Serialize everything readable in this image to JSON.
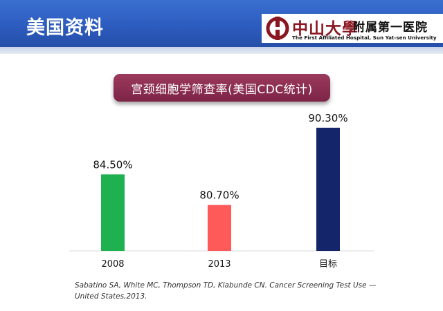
{
  "header": {
    "title": "美国资料"
  },
  "logo": {
    "name_cn": "中山大學",
    "subtitle": "附属第一医院",
    "name_en": "The First Affiliated Hospital, Sun Yat-sen University"
  },
  "chart_title": "宫颈细胞学筛查率(美国CDC统计)",
  "chart_data": {
    "type": "bar",
    "title": "宫颈细胞学筛查率(美国CDC统计)",
    "categories": [
      "2008",
      "2013",
      "目标"
    ],
    "values": [
      84.5,
      80.7,
      90.3
    ],
    "value_labels": [
      "84.50%",
      "80.70%",
      "90.30%"
    ],
    "colors": [
      "#1fb050",
      "#ff5a5a",
      "#14256a"
    ],
    "ylim": [
      75,
      92
    ],
    "grid": false,
    "legend": "none"
  },
  "citation": "Sabatino SA, White MC, Thompson TD, Klabunde CN. Cancer Screening Test Use — United States,2013."
}
